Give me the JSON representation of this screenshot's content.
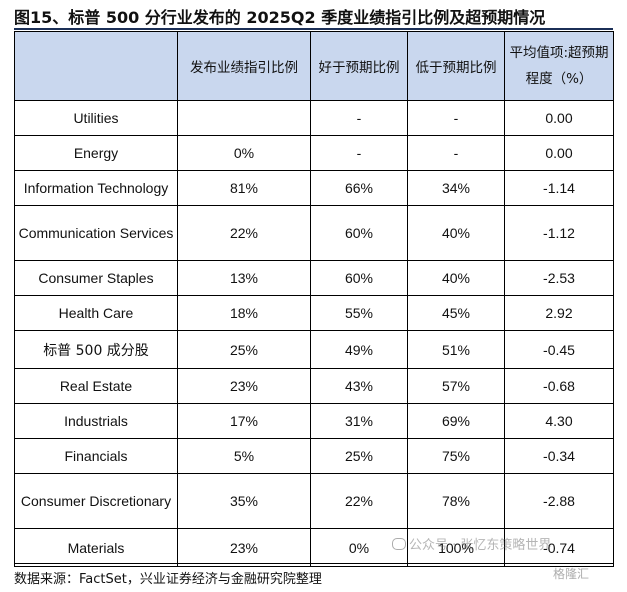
{
  "title": "图15、标普 500 分行业发布的 2025Q2 季度业绩指引比例及超预期情况",
  "table": {
    "headers": [
      "",
      "发布业绩指引比例",
      "好于预期比例",
      "低于预期比例",
      "平均值项:超预期程度（%）"
    ],
    "rows": [
      {
        "name": "Utilities",
        "guidance": "",
        "better": "-",
        "worse": "-",
        "surprise": "0.00"
      },
      {
        "name": "Energy",
        "guidance": "0%",
        "better": "-",
        "worse": "-",
        "surprise": "0.00"
      },
      {
        "name": "Information Technology",
        "guidance": "81%",
        "better": "66%",
        "worse": "34%",
        "surprise": "-1.14"
      },
      {
        "name": "Communication Services",
        "guidance": "22%",
        "better": "60%",
        "worse": "40%",
        "surprise": "-1.12"
      },
      {
        "name": "Consumer Staples",
        "guidance": "13%",
        "better": "60%",
        "worse": "40%",
        "surprise": "-2.53"
      },
      {
        "name": "Health Care",
        "guidance": "18%",
        "better": "55%",
        "worse": "45%",
        "surprise": "2.92"
      },
      {
        "name": "标普 500 成分股",
        "guidance": "25%",
        "better": "49%",
        "worse": "51%",
        "surprise": "-0.45"
      },
      {
        "name": "Real Estate",
        "guidance": "23%",
        "better": "43%",
        "worse": "57%",
        "surprise": "-0.68"
      },
      {
        "name": "Industrials",
        "guidance": "17%",
        "better": "31%",
        "worse": "69%",
        "surprise": "4.30"
      },
      {
        "name": "Financials",
        "guidance": "5%",
        "better": "25%",
        "worse": "75%",
        "surprise": "-0.34"
      },
      {
        "name": "Consumer Discretionary",
        "guidance": "35%",
        "better": "22%",
        "worse": "78%",
        "surprise": "-2.88"
      },
      {
        "name": "Materials",
        "guidance": "23%",
        "better": "0%",
        "worse": "100%",
        "surprise": "-0.74"
      }
    ]
  },
  "source": "数据来源：FactSet，兴业证券经济与金融研究院整理",
  "watermark": "公众号 · 张忆东策略世界",
  "logo_text": "格隆汇",
  "colors": {
    "header_bg": "#c9d7ee",
    "title_rule": "#1b2f57"
  }
}
